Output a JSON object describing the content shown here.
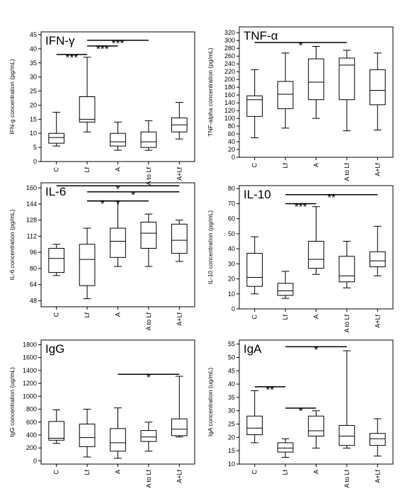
{
  "chart_data": [
    {
      "type": "box",
      "title": "IFN-γ",
      "y_label": "IFN-g concentration (pg/mL)",
      "categories": [
        "C",
        "Lf",
        "A",
        "A to Lf",
        "A+Lf"
      ],
      "whisker_low": [
        5.5,
        10.5,
        4,
        4,
        8
      ],
      "q1": [
        6.5,
        14,
        5.5,
        5,
        10.5
      ],
      "median": [
        8.5,
        15,
        7,
        7,
        13
      ],
      "q3": [
        10,
        23,
        10,
        10.5,
        15.5
      ],
      "whisker_high": [
        17.5,
        37,
        14,
        14.5,
        21
      ],
      "ylim": [
        0,
        46
      ],
      "yticks": [
        0,
        5,
        10,
        15,
        20,
        25,
        30,
        35,
        40,
        45
      ],
      "significance": [
        {
          "from": "C",
          "to": "Lf",
          "y": 38,
          "label": "***"
        },
        {
          "from": "Lf",
          "to": "A",
          "y": 41,
          "label": "***"
        },
        {
          "from": "Lf",
          "to": "A to Lf",
          "y": 43,
          "label": "***"
        }
      ]
    },
    {
      "type": "box",
      "title": "TNF-α",
      "y_label": "TNF-alpha concentration (pg/mL)",
      "categories": [
        "C",
        "Lf",
        "A",
        "A to Lf",
        "A+Lf"
      ],
      "whisker_low": [
        50,
        75,
        100,
        68,
        70
      ],
      "q1": [
        105,
        125,
        148,
        148,
        135
      ],
      "median": [
        148,
        162,
        193,
        237,
        172
      ],
      "q3": [
        158,
        195,
        253,
        255,
        225
      ],
      "whisker_high": [
        225,
        268,
        285,
        275,
        268
      ],
      "ylim": [
        0,
        335
      ],
      "yticks": [
        0,
        20,
        40,
        60,
        80,
        100,
        120,
        140,
        160,
        180,
        200,
        220,
        240,
        260,
        280,
        300,
        320
      ],
      "significance": [
        {
          "from": "C",
          "to": "A to Lf",
          "y": 295,
          "label": "*"
        }
      ]
    },
    {
      "type": "box",
      "title": "IL-6",
      "y_label": "IL-6 concentration (pg/mL)",
      "categories": [
        "C",
        "Lf",
        "A",
        "A to Lf",
        "A+Lf"
      ],
      "whisker_low": [
        73,
        50,
        82,
        82,
        87
      ],
      "q1": [
        76,
        63,
        91,
        100,
        95
      ],
      "median": [
        90,
        89,
        107,
        115,
        108
      ],
      "q3": [
        100,
        104,
        120,
        126,
        124
      ],
      "whisker_high": [
        104,
        120,
        147,
        134,
        128
      ],
      "ylim": [
        42,
        165
      ],
      "yticks": [
        48,
        64,
        80,
        96,
        112,
        128,
        144,
        160
      ],
      "significance": [
        {
          "from": "C",
          "to": "A+Lf",
          "y": 162,
          "label": "*"
        },
        {
          "from": "Lf",
          "to": "A+Lf",
          "y": 156,
          "label": "*"
        },
        {
          "from": "Lf",
          "to": "A to Lf",
          "y": 147,
          "label": "*"
        },
        {
          "from": "Lf",
          "to": "A",
          "y": 147,
          "label": "*"
        }
      ]
    },
    {
      "type": "box",
      "title": "IL-10",
      "y_label": "IL-10 concentration (pg/mL)",
      "categories": [
        "C",
        "Lf",
        "A",
        "A to Lf",
        "A+Lf"
      ],
      "whisker_low": [
        10,
        7,
        23,
        14,
        22
      ],
      "q1": [
        15,
        9,
        27,
        18,
        28
      ],
      "median": [
        21,
        12,
        33,
        22,
        32
      ],
      "q3": [
        37,
        17,
        45,
        35,
        38
      ],
      "whisker_high": [
        48,
        25,
        68,
        45,
        55
      ],
      "ylim": [
        0,
        82
      ],
      "yticks": [
        0,
        10,
        20,
        30,
        40,
        50,
        60,
        70,
        80
      ],
      "significance": [
        {
          "from": "Lf",
          "to": "A+Lf",
          "y": 76,
          "label": "**"
        },
        {
          "from": "Lf",
          "to": "A",
          "y": 70,
          "label": "***"
        }
      ]
    },
    {
      "type": "box",
      "title": "IgG",
      "y_label": "IgG concentration (ug/mL)",
      "categories": [
        "C",
        "Lf",
        "A",
        "A to Lf",
        "A+Lf"
      ],
      "whisker_low": [
        270,
        60,
        40,
        150,
        370
      ],
      "q1": [
        320,
        220,
        150,
        300,
        390
      ],
      "median": [
        350,
        360,
        280,
        370,
        490
      ],
      "q3": [
        610,
        570,
        500,
        470,
        650
      ],
      "whisker_high": [
        790,
        800,
        820,
        600,
        1310
      ],
      "ylim": [
        -50,
        1870
      ],
      "yticks": [
        0,
        200,
        400,
        600,
        800,
        1000,
        1200,
        1400,
        1600,
        1800
      ],
      "significance": [
        {
          "from": "A",
          "to": "A+Lf",
          "y": 1340,
          "label": "*"
        }
      ]
    },
    {
      "type": "box",
      "title": "IgA",
      "y_label": "IgA concentration (ug/mL)",
      "categories": [
        "C",
        "Lf",
        "A",
        "A to Lf",
        "A+Lf"
      ],
      "whisker_low": [
        18,
        12.5,
        16,
        16,
        13
      ],
      "q1": [
        21,
        14.5,
        20.5,
        17,
        17
      ],
      "median": [
        23.5,
        16,
        22.5,
        20.5,
        19.5
      ],
      "q3": [
        28,
        18,
        28,
        24.5,
        21.5
      ],
      "whisker_high": [
        37.5,
        19.5,
        30,
        52.5,
        27
      ],
      "ylim": [
        10,
        56.5
      ],
      "yticks": [
        10,
        15,
        20,
        25,
        30,
        35,
        40,
        45,
        50,
        55
      ],
      "significance": [
        {
          "from": "C",
          "to": "Lf",
          "y": 39,
          "label": "**"
        },
        {
          "from": "Lf",
          "to": "A",
          "y": 31,
          "label": "*"
        },
        {
          "from": "Lf",
          "to": "A to Lf",
          "y": 54,
          "label": "*"
        }
      ]
    }
  ]
}
